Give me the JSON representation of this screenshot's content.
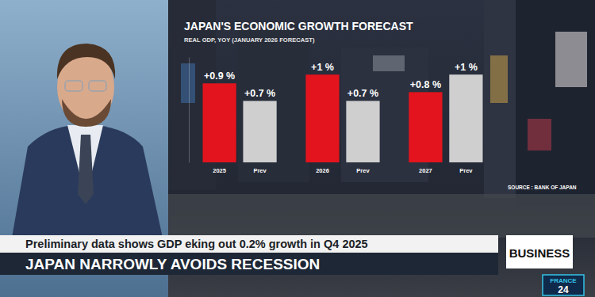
{
  "chart_data": {
    "type": "bar",
    "title": "JAPAN'S ECONOMIC GROWTH FORECAST",
    "subtitle": "REAL GDP, YOY (JANUARY 2026 FORECAST)",
    "categories": [
      "2025",
      "Prev",
      "2026",
      "Prev",
      "2027",
      "Prev"
    ],
    "values": [
      0.9,
      0.7,
      1,
      0.7,
      0.8,
      1
    ],
    "value_labels": [
      "+0.9 %",
      "+0.7 %",
      "+1 %",
      "+0.7 %",
      "+0.8 %",
      "+1 %"
    ],
    "colors": [
      "#e3141d",
      "#cfcfcf",
      "#e3141d",
      "#cfcfcf",
      "#e3141d",
      "#cfcfcf"
    ],
    "ylim": [
      0,
      1.2
    ],
    "data_labels": true,
    "tick_labels": "x",
    "grid": false,
    "source": "SOURCE : BANK OF JAPAN"
  },
  "overlay": {
    "kicker": "Preliminary data shows GDP eking out 0.2% growth in Q4 2025",
    "headline": "JAPAN NARROWLY AVOIDS RECESSION",
    "section": "BUSINESS",
    "logo": [
      "FRANCE",
      "24"
    ]
  }
}
